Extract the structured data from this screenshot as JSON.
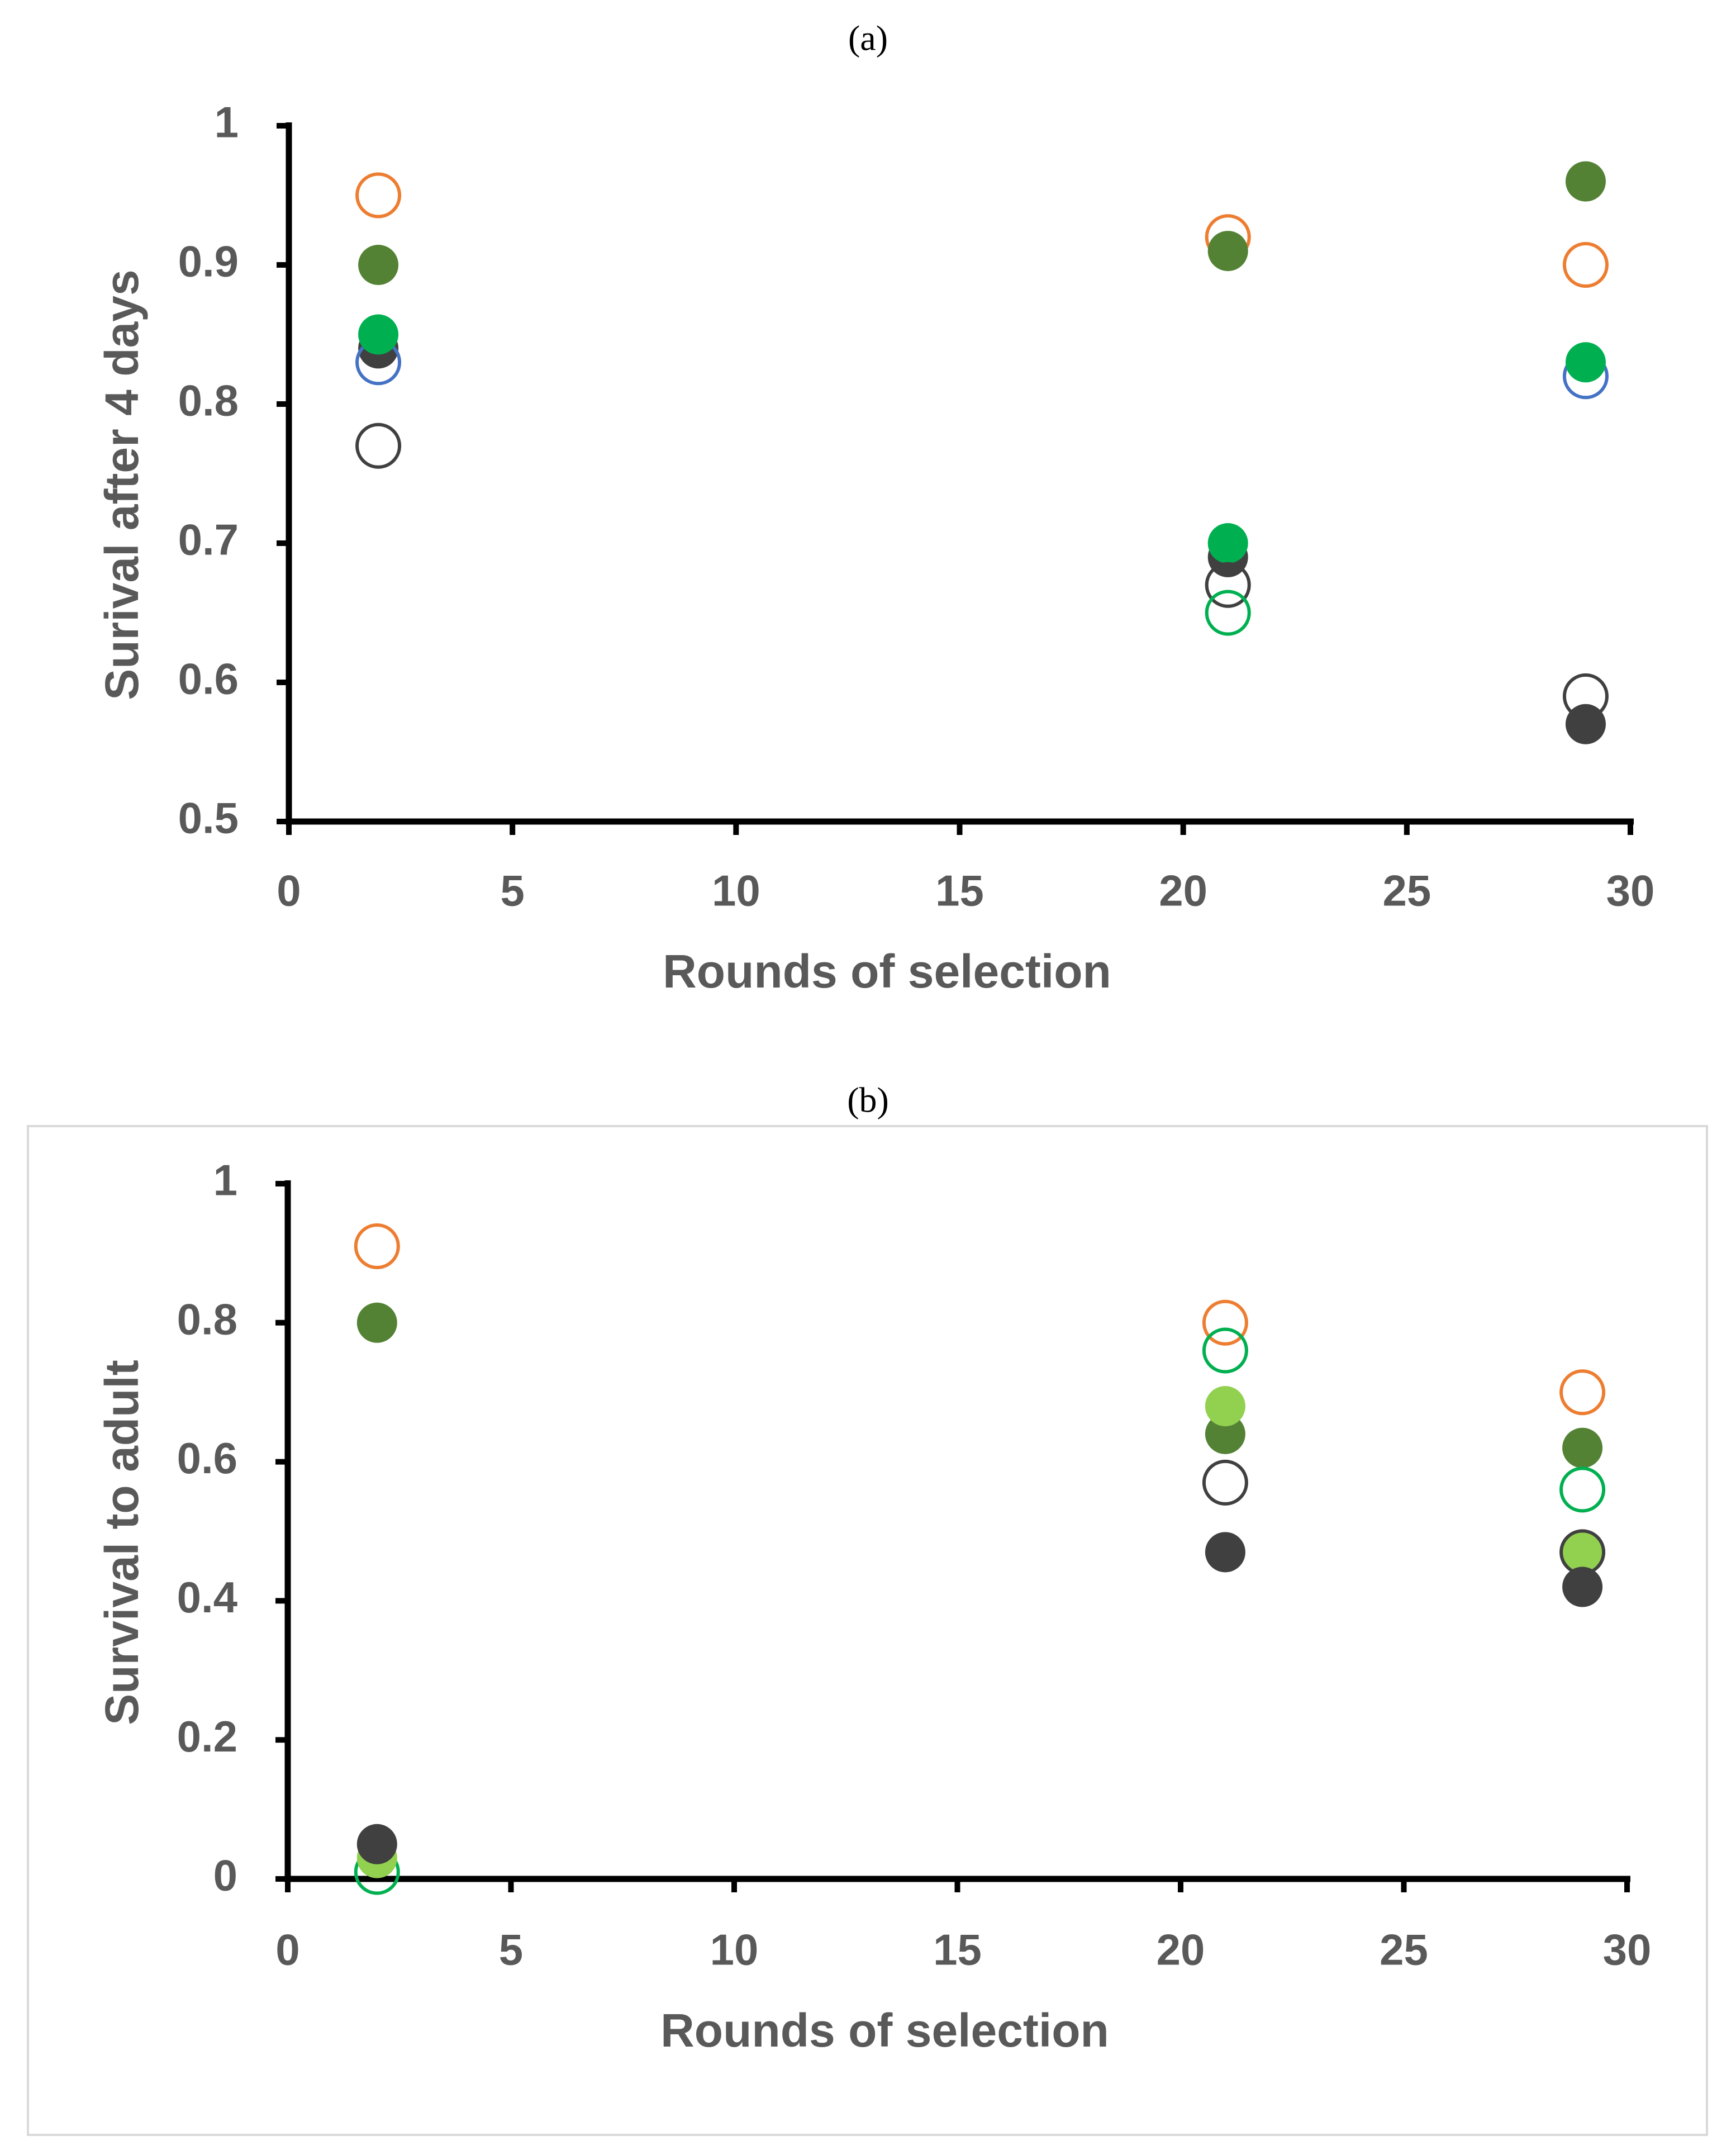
{
  "chart_data": [
    {
      "type": "scatter",
      "panel_label": "(a)",
      "xlabel": "Rounds of selection",
      "ylabel": "Surival after 4 days",
      "xlim": [
        0,
        30
      ],
      "ylim": [
        0.5,
        1
      ],
      "x_ticks": [
        0,
        5,
        10,
        15,
        20,
        25,
        30
      ],
      "y_ticks": [
        0.5,
        0.6,
        0.7,
        0.8,
        0.9,
        1
      ],
      "y_tick_labels": [
        "0.5",
        "0.6",
        "0.7",
        "0.8",
        "0.9",
        "1"
      ],
      "grid": false,
      "legend": "none",
      "series": [
        {
          "marker": "open",
          "color": "#ED7D31",
          "points": [
            [
              2,
              0.95
            ],
            [
              21,
              0.92
            ],
            [
              29,
              0.9
            ]
          ]
        },
        {
          "marker": "filled",
          "color": "#548235",
          "points": [
            [
              2,
              0.9
            ],
            [
              21,
              0.91
            ],
            [
              29,
              0.96
            ]
          ]
        },
        {
          "marker": "filled",
          "color": "#404040",
          "points": [
            [
              2,
              0.84
            ],
            [
              21,
              0.69
            ],
            [
              29,
              0.57
            ]
          ]
        },
        {
          "marker": "open",
          "color": "#4472C4",
          "points": [
            [
              2,
              0.83
            ],
            [
              29,
              0.82
            ]
          ]
        },
        {
          "marker": "filled",
          "color": "#00B050",
          "points": [
            [
              2,
              0.85
            ],
            [
              21,
              0.7
            ],
            [
              29,
              0.83
            ]
          ]
        },
        {
          "marker": "open",
          "color": "#404040",
          "points": [
            [
              2,
              0.77
            ],
            [
              21,
              0.67
            ],
            [
              29,
              0.59
            ]
          ]
        },
        {
          "marker": "open",
          "color": "#00B050",
          "points": [
            [
              21,
              0.65
            ]
          ]
        }
      ]
    },
    {
      "type": "scatter",
      "panel_label": "(b)",
      "xlabel": "Rounds of selection",
      "ylabel": "Survival to adult",
      "xlim": [
        0,
        30
      ],
      "ylim": [
        0,
        1
      ],
      "x_ticks": [
        0,
        5,
        10,
        15,
        20,
        25,
        30
      ],
      "y_ticks": [
        0,
        0.2,
        0.4,
        0.6,
        0.8,
        1
      ],
      "y_tick_labels": [
        "0",
        "0.2",
        "0.4",
        "0.6",
        "0.8",
        "1"
      ],
      "grid": false,
      "legend": "none",
      "series": [
        {
          "marker": "open",
          "color": "#ED7D31",
          "points": [
            [
              2,
              0.91
            ],
            [
              21,
              0.8
            ],
            [
              29,
              0.7
            ]
          ]
        },
        {
          "marker": "filled",
          "color": "#548235",
          "points": [
            [
              2,
              0.8
            ],
            [
              21,
              0.64
            ],
            [
              29,
              0.62
            ]
          ]
        },
        {
          "marker": "open",
          "color": "#00B050",
          "points": [
            [
              2,
              0.01
            ],
            [
              21,
              0.76
            ],
            [
              29,
              0.56
            ]
          ]
        },
        {
          "marker": "filled",
          "color": "#92D050",
          "points": [
            [
              2,
              0.03
            ],
            [
              21,
              0.68
            ],
            [
              29,
              0.47
            ]
          ]
        },
        {
          "marker": "open",
          "color": "#404040",
          "points": [
            [
              21,
              0.57
            ],
            [
              29,
              0.47
            ]
          ]
        },
        {
          "marker": "filled",
          "color": "#404040",
          "points": [
            [
              2,
              0.05
            ],
            [
              21,
              0.47
            ],
            [
              29,
              0.42
            ]
          ]
        }
      ]
    }
  ]
}
